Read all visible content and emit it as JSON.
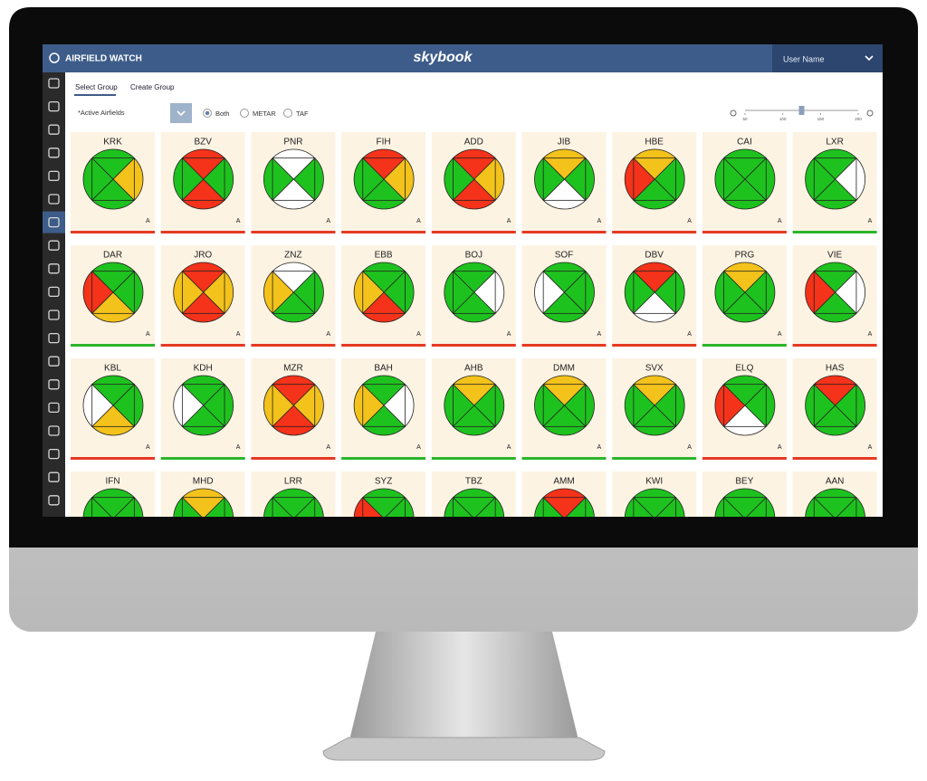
{
  "header": {
    "app_title": "AIRFIELD WATCH",
    "brand": "skybook",
    "user": "User Name"
  },
  "tabs": [
    "Select Group",
    "Create Group"
  ],
  "filters": {
    "label": "*Active Airfields",
    "options": [
      "Both",
      "METAR",
      "TAF"
    ],
    "selected": 0
  },
  "zoom": {
    "ticks": [
      50,
      100,
      150,
      200
    ],
    "value": 125
  },
  "airfields": [
    {
      "code": "KRK",
      "quadrants": [
        "#1ec21e",
        "#f3c21b",
        "#1ec21e",
        "#1ec21e"
      ],
      "flag": "A",
      "status": "#e53a24"
    },
    {
      "code": "BZV",
      "quadrants": [
        "#f5321a",
        "#1ec21e",
        "#f5321a",
        "#1ec21e"
      ],
      "flag": "A",
      "status": "#e53a24"
    },
    {
      "code": "PNR",
      "quadrants": [
        "#ffffff",
        "#1ec21e",
        "#ffffff",
        "#1ec21e"
      ],
      "flag": "A",
      "status": "#e53a24"
    },
    {
      "code": "FIH",
      "quadrants": [
        "#f5321a",
        "#f3c21b",
        "#1ec21e",
        "#1ec21e"
      ],
      "flag": "A",
      "status": "#e53a24"
    },
    {
      "code": "ADD",
      "quadrants": [
        "#f5321a",
        "#f3c21b",
        "#f5321a",
        "#1ec21e"
      ],
      "flag": "A",
      "status": "#e53a24"
    },
    {
      "code": "JIB",
      "quadrants": [
        "#f3c21b",
        "#1ec21e",
        "#ffffff",
        "#1ec21e"
      ],
      "flag": "A",
      "status": "#e53a24"
    },
    {
      "code": "HBE",
      "quadrants": [
        "#f3c21b",
        "#1ec21e",
        "#1ec21e",
        "#f5321a"
      ],
      "flag": "A",
      "status": "#e53a24"
    },
    {
      "code": "CAI",
      "quadrants": [
        "#1ec21e",
        "#1ec21e",
        "#1ec21e",
        "#1ec21e"
      ],
      "flag": "A",
      "status": "#e53a24"
    },
    {
      "code": "LXR",
      "quadrants": [
        "#1ec21e",
        "#ffffff",
        "#1ec21e",
        "#1ec21e"
      ],
      "flag": "A",
      "status": "#2bb52b"
    },
    {
      "code": "DAR",
      "quadrants": [
        "#1ec21e",
        "#1ec21e",
        "#f3c21b",
        "#f5321a"
      ],
      "flag": "A",
      "status": "#2bb52b"
    },
    {
      "code": "JRO",
      "quadrants": [
        "#f5321a",
        "#f3c21b",
        "#f5321a",
        "#f3c21b"
      ],
      "flag": "A",
      "status": "#e53a24"
    },
    {
      "code": "ZNZ",
      "quadrants": [
        "#ffffff",
        "#1ec21e",
        "#1ec21e",
        "#f3c21b"
      ],
      "flag": "A",
      "status": "#e53a24"
    },
    {
      "code": "EBB",
      "quadrants": [
        "#1ec21e",
        "#1ec21e",
        "#f5321a",
        "#f3c21b"
      ],
      "flag": "A",
      "status": "#e53a24"
    },
    {
      "code": "BOJ",
      "quadrants": [
        "#1ec21e",
        "#ffffff",
        "#1ec21e",
        "#1ec21e"
      ],
      "flag": "A",
      "status": "#e53a24"
    },
    {
      "code": "SOF",
      "quadrants": [
        "#1ec21e",
        "#1ec21e",
        "#1ec21e",
        "#ffffff"
      ],
      "flag": "A",
      "status": "#e53a24"
    },
    {
      "code": "DBV",
      "quadrants": [
        "#f5321a",
        "#1ec21e",
        "#ffffff",
        "#1ec21e"
      ],
      "flag": "A",
      "status": "#e53a24"
    },
    {
      "code": "PRG",
      "quadrants": [
        "#f3c21b",
        "#1ec21e",
        "#1ec21e",
        "#1ec21e"
      ],
      "flag": "A",
      "status": "#2bb52b"
    },
    {
      "code": "VIE",
      "quadrants": [
        "#1ec21e",
        "#ffffff",
        "#1ec21e",
        "#f5321a"
      ],
      "flag": "A",
      "status": "#e53a24"
    },
    {
      "code": "KBL",
      "quadrants": [
        "#1ec21e",
        "#1ec21e",
        "#f3c21b",
        "#ffffff"
      ],
      "flag": "A",
      "status": "#e53a24"
    },
    {
      "code": "KDH",
      "quadrants": [
        "#1ec21e",
        "#1ec21e",
        "#1ec21e",
        "#ffffff"
      ],
      "flag": "A",
      "status": "#2bb52b"
    },
    {
      "code": "MZR",
      "quadrants": [
        "#f5321a",
        "#f3c21b",
        "#f5321a",
        "#f3c21b"
      ],
      "flag": "A",
      "status": "#e53a24"
    },
    {
      "code": "BAH",
      "quadrants": [
        "#1ec21e",
        "#ffffff",
        "#1ec21e",
        "#f3c21b"
      ],
      "flag": "A",
      "status": "#2bb52b"
    },
    {
      "code": "AHB",
      "quadrants": [
        "#f3c21b",
        "#1ec21e",
        "#1ec21e",
        "#1ec21e"
      ],
      "flag": "A",
      "status": "#2bb52b"
    },
    {
      "code": "DMM",
      "quadrants": [
        "#f3c21b",
        "#1ec21e",
        "#1ec21e",
        "#1ec21e"
      ],
      "flag": "A",
      "status": "#2bb52b"
    },
    {
      "code": "SVX",
      "quadrants": [
        "#f3c21b",
        "#1ec21e",
        "#1ec21e",
        "#1ec21e"
      ],
      "flag": "A",
      "status": "#2bb52b"
    },
    {
      "code": "ELQ",
      "quadrants": [
        "#1ec21e",
        "#1ec21e",
        "#ffffff",
        "#f5321a"
      ],
      "flag": "A",
      "status": "#e53a24"
    },
    {
      "code": "HAS",
      "quadrants": [
        "#f5321a",
        "#1ec21e",
        "#1ec21e",
        "#1ec21e"
      ],
      "flag": "A",
      "status": "#e53a24"
    },
    {
      "code": "IFN",
      "quadrants": [
        "#1ec21e",
        "#1ec21e",
        "#1ec21e",
        "#1ec21e"
      ]
    },
    {
      "code": "MHD",
      "quadrants": [
        "#f3c21b",
        "#1ec21e",
        "#1ec21e",
        "#1ec21e"
      ]
    },
    {
      "code": "LRR",
      "quadrants": [
        "#1ec21e",
        "#1ec21e",
        "#1ec21e",
        "#1ec21e"
      ]
    },
    {
      "code": "SYZ",
      "quadrants": [
        "#1ec21e",
        "#1ec21e",
        "#1ec21e",
        "#f5321a"
      ]
    },
    {
      "code": "TBZ",
      "quadrants": [
        "#1ec21e",
        "#1ec21e",
        "#1ec21e",
        "#1ec21e"
      ]
    },
    {
      "code": "AMM",
      "quadrants": [
        "#f5321a",
        "#1ec21e",
        "#1ec21e",
        "#1ec21e"
      ]
    },
    {
      "code": "KWI",
      "quadrants": [
        "#1ec21e",
        "#1ec21e",
        "#1ec21e",
        "#1ec21e"
      ]
    },
    {
      "code": "BEY",
      "quadrants": [
        "#1ec21e",
        "#1ec21e",
        "#1ec21e",
        "#1ec21e"
      ]
    },
    {
      "code": "AAN",
      "quadrants": [
        "#1ec21e",
        "#1ec21e",
        "#1ec21e",
        "#1ec21e"
      ]
    }
  ]
}
